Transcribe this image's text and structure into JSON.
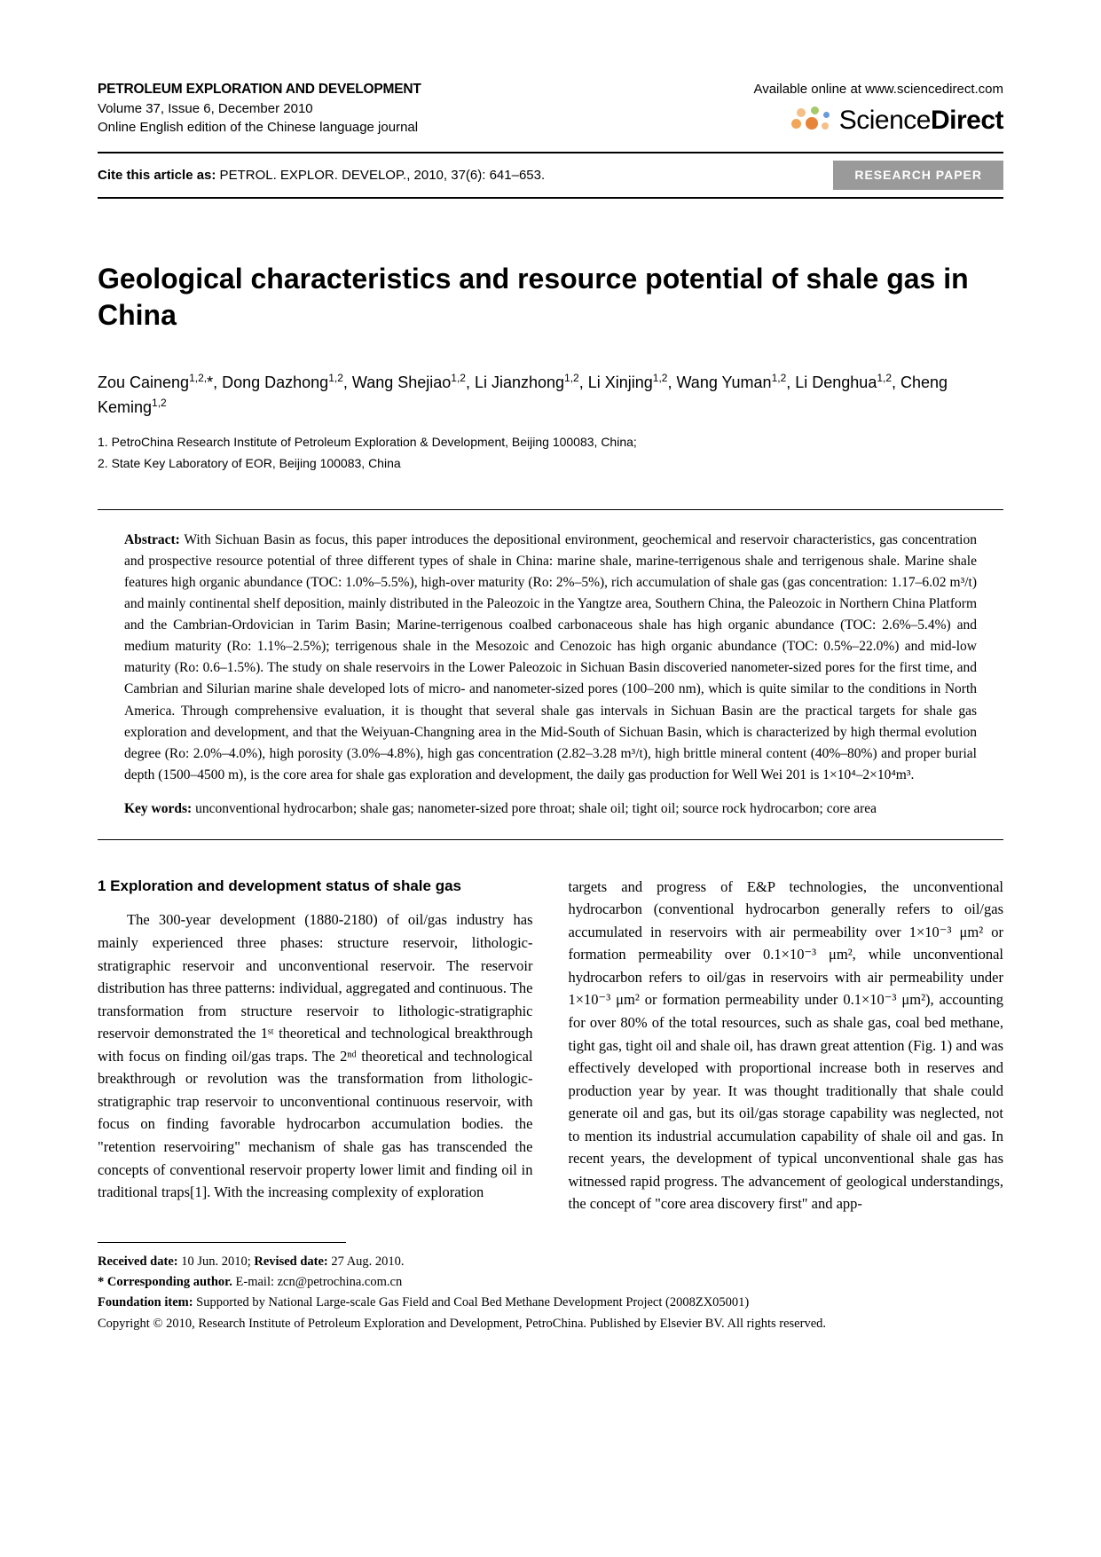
{
  "header": {
    "journal_name": "PETROLEUM EXPLORATION AND DEVELOPMENT",
    "volume_issue": "Volume 37, Issue 6, December 2010",
    "edition": "Online English edition of the Chinese language journal",
    "available_at": "Available online at www.sciencedirect.com",
    "brand_light": "Science",
    "brand_bold": "Direct"
  },
  "cite": {
    "label": "Cite this article as:",
    "text": " PETROL. EXPLOR. DEVELOP., 2010, 37(6): 641–653.",
    "badge": "RESEARCH PAPER"
  },
  "title": "Geological characteristics and resource potential of shale gas in China",
  "authors_html": "Zou Caineng<sup>1,2,</sup>*, Dong Dazhong<sup>1,2</sup>, Wang Shejiao<sup>1,2</sup>, Li Jianzhong<sup>1,2</sup>, Li Xinjing<sup>1,2</sup>, Wang Yuman<sup>1,2</sup>, Li Denghua<sup>1,2</sup>, Cheng Keming<sup>1,2</sup>",
  "affiliations": {
    "a1": "1. PetroChina Research Institute of Petroleum Exploration & Development, Beijing 100083, China;",
    "a2": "2. State Key Laboratory of EOR, Beijing 100083, China"
  },
  "abstract": {
    "label": "Abstract:",
    "text": "   With Sichuan Basin as focus, this paper introduces the depositional environment, geochemical and reservoir characteristics, gas concentration and prospective resource potential of three different types of shale in China: marine shale, marine-terrigenous shale and terrigenous shale. Marine shale features high organic abundance (TOC: 1.0%–5.5%), high-over maturity (Ro: 2%–5%), rich accumulation of shale gas (gas concentration: 1.17–6.02 m³/t) and mainly continental shelf deposition, mainly distributed in the Paleozoic in the Yangtze area, Southern China, the Paleozoic in Northern China Platform and the Cambrian-Ordovician in Tarim Basin; Marine-terrigenous coalbed carbonaceous shale has high organic abundance (TOC: 2.6%–5.4%) and medium maturity (Ro: 1.1%–2.5%); terrigenous shale in the Mesozoic and Cenozoic has high organic abundance (TOC: 0.5%–22.0%) and mid-low maturity (Ro: 0.6–1.5%). The study on shale reservoirs in the Lower Paleozoic in Sichuan Basin discoveried nanometer-sized pores for the first time, and Cambrian and Silurian marine shale developed lots of micro- and nanometer-sized pores (100–200 nm), which is quite similar to the conditions in North America. Through comprehensive evaluation, it is thought that several shale gas intervals in Sichuan Basin are the practical targets for shale gas exploration and development, and that the Weiyuan-Changning area in the Mid-South of Sichuan Basin, which is characterized by high thermal evolution degree (Ro: 2.0%–4.0%), high porosity (3.0%–4.8%), high gas concentration (2.82–3.28 m³/t), high brittle mineral content (40%–80%) and proper burial depth (1500–4500 m), is the core area for shale gas exploration and development, the daily gas production for Well Wei 201 is 1×10⁴–2×10⁴m³."
  },
  "keywords": {
    "label": "Key words:",
    "text": "   unconventional hydrocarbon; shale gas; nanometer-sized pore throat; shale oil; tight oil; source rock hydrocarbon; core area"
  },
  "section1": {
    "heading": "1  Exploration and development status of shale gas",
    "col1": "The 300-year development (1880-2180) of oil/gas industry has mainly experienced three phases: structure reservoir, lithologic-stratigraphic reservoir and unconventional reservoir. The reservoir distribution has three patterns: individual, aggregated and continuous. The transformation from structure reservoir to lithologic-stratigraphic reservoir demonstrated the 1ˢᵗ theoretical and technological breakthrough with focus on finding oil/gas traps. The 2ⁿᵈ theoretical and technological breakthrough or revolution was the transformation from lithologic-stratigraphic trap reservoir to unconventional continuous reservoir, with focus on finding favorable hydrocarbon accumulation bodies. the \"retention reservoiring\" mechanism of shale gas has transcended the concepts of conventional reservoir property lower limit and finding oil in traditional traps[1]. With the increasing complexity of exploration",
    "col2": "targets and progress of E&P technologies, the unconventional hydrocarbon (conventional hydrocarbon generally refers to oil/gas accumulated in reservoirs with air permeability over 1×10⁻³ μm² or formation permeability over 0.1×10⁻³ μm², while unconventional hydrocarbon refers to oil/gas in reservoirs with air permeability under 1×10⁻³ μm² or formation permeability under 0.1×10⁻³ μm²), accounting for over 80% of the total resources, such as shale gas, coal bed methane, tight gas, tight oil and shale oil, has drawn great attention (Fig. 1) and was effectively developed with proportional increase both in reserves and production year by year. It was thought traditionally that shale could generate oil and gas, but its oil/gas storage capability was neglected, not to mention its industrial accumulation capability of shale oil and gas. In recent years, the development of typical unconventional shale gas has witnessed rapid progress. The advancement of geological understandings, the concept of \"core area discovery first\" and app-"
  },
  "footer": {
    "received_label": "Received date:",
    "received": " 10 Jun. 2010; ",
    "revised_label": "Revised date:",
    "revised": " 27 Aug. 2010.",
    "corr_label": "* Corresponding author.",
    "corr": " E-mail: zcn@petrochina.com.cn",
    "foundation_label": "Foundation item:",
    "foundation": " Supported by National Large-scale Gas Field and Coal Bed Methane Development Project (2008ZX05001)",
    "copyright": "Copyright © 2010, Research Institute of Petroleum Exploration and Development, PetroChina. Published by Elsevier BV. All rights reserved."
  },
  "style": {
    "badge_bg": "#9a9a9a",
    "dot_colors": {
      "orange_dark": "#e8833a",
      "orange_mid": "#f2a65a",
      "orange_light": "#f5c088",
      "green": "#a5c96b",
      "blue": "#6a9bd8"
    }
  }
}
